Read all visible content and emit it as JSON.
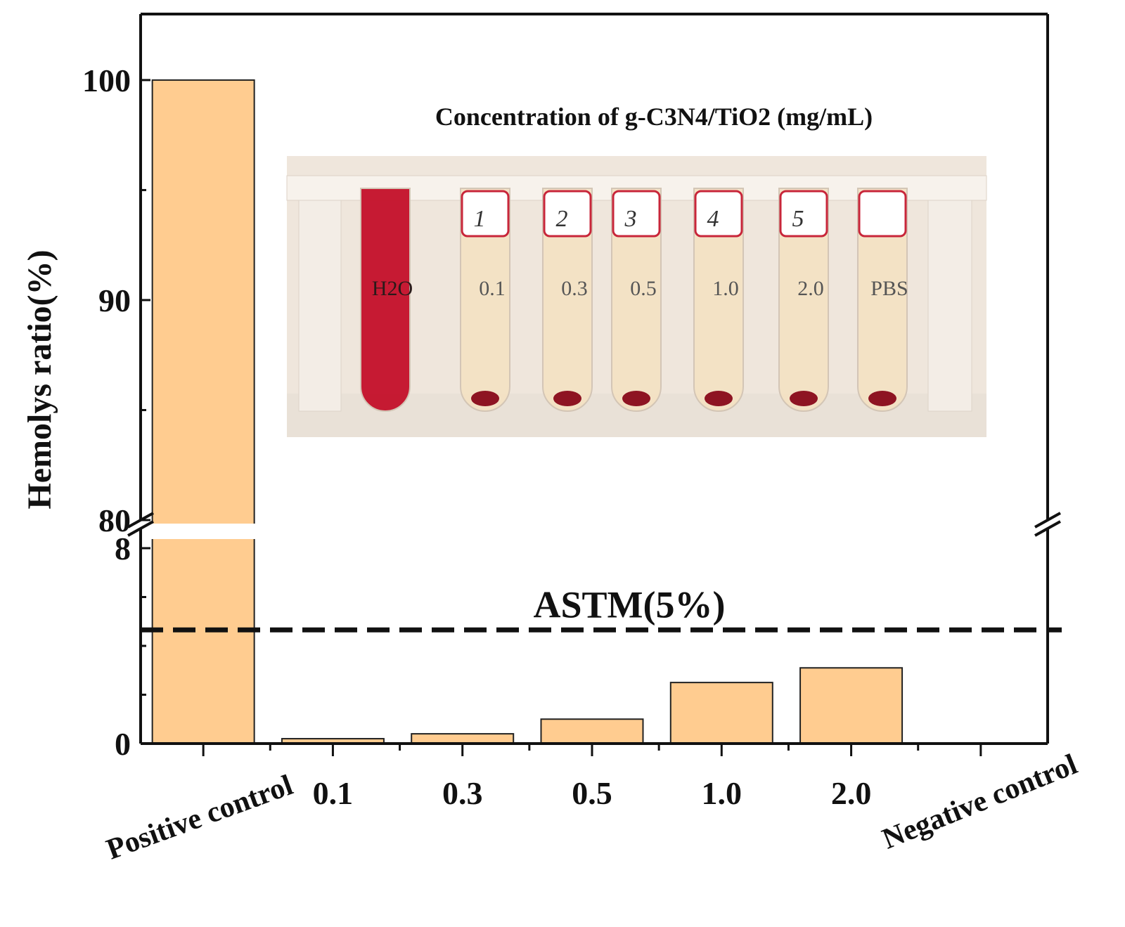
{
  "chart_data": {
    "type": "bar",
    "ylabel": "Hemolys ratio(%)",
    "categories": [
      "Positive control",
      "0.1",
      "0.3",
      "0.5",
      "1.0",
      "2.0",
      "Negative control"
    ],
    "values": [
      100,
      0.2,
      0.4,
      1.0,
      2.5,
      3.1,
      0
    ],
    "y_axis_broken": true,
    "ylim_lower": [
      0,
      8
    ],
    "ylim_upper": [
      80,
      103
    ],
    "lower_yticks": [
      {
        "value": 0,
        "label": "0"
      },
      {
        "value": 8,
        "label": "8"
      }
    ],
    "upper_yticks": [
      {
        "value": 80,
        "label": "80"
      },
      {
        "value": 90,
        "label": "90"
      },
      {
        "value": 100,
        "label": "100"
      }
    ],
    "reference_line": {
      "value": 5.0,
      "label": "ASTM(5%)"
    },
    "bar_color": "#FFCC90",
    "inset": {
      "title": "Concentration of g-C3N4/TiO2 (mg/mL)",
      "tubes": [
        {
          "number": "",
          "label": "H2O",
          "fluid_color": "#C4102A"
        },
        {
          "number": "1",
          "label": "0.1",
          "fluid_color": "#F4E2C4"
        },
        {
          "number": "2",
          "label": "0.3",
          "fluid_color": "#F4E2C4"
        },
        {
          "number": "3",
          "label": "0.5",
          "fluid_color": "#F4E2C4"
        },
        {
          "number": "4",
          "label": "1.0",
          "fluid_color": "#F4E2C4"
        },
        {
          "number": "5",
          "label": "2.0",
          "fluid_color": "#F4E2C4"
        },
        {
          "number": "",
          "label": "PBS",
          "fluid_color": "#F4E2C4"
        }
      ]
    }
  }
}
